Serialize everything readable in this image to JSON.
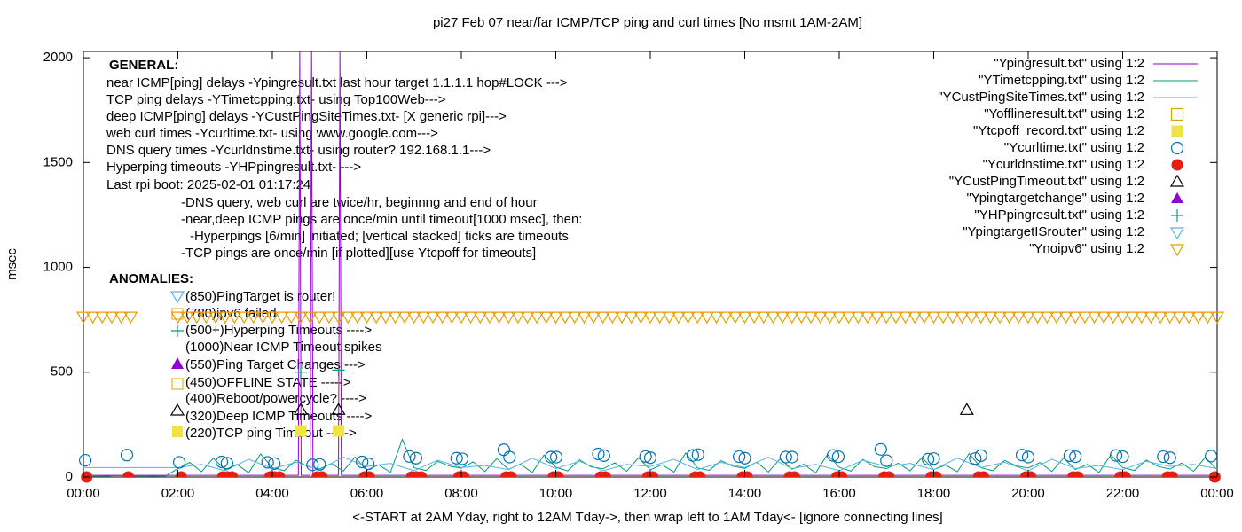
{
  "chart_data": {
    "type": "line",
    "title": "pi27 Feb 07  near/far ICMP/TCP ping and curl times [No msmt 1AM-2AM]",
    "xlabel": "<-START at 2AM Yday, right to 12AM Tday->, then wrap left to 1AM Tday<- [ignore connecting lines]",
    "ylabel": "msec",
    "xlim": [
      0,
      24
    ],
    "xticks": [
      {
        "value": 0,
        "label": "00:00"
      },
      {
        "value": 2,
        "label": "02:00"
      },
      {
        "value": 4,
        "label": "04:00"
      },
      {
        "value": 6,
        "label": "06:00"
      },
      {
        "value": 8,
        "label": "08:00"
      },
      {
        "value": 10,
        "label": "10:00"
      },
      {
        "value": 12,
        "label": "12:00"
      },
      {
        "value": 14,
        "label": "14:00"
      },
      {
        "value": 16,
        "label": "16:00"
      },
      {
        "value": 18,
        "label": "18:00"
      },
      {
        "value": 20,
        "label": "20:00"
      },
      {
        "value": 22,
        "label": "22:00"
      },
      {
        "value": 24,
        "label": "00:00"
      }
    ],
    "ylim": [
      0,
      2030
    ],
    "yticks": [
      0,
      500,
      1000,
      1500,
      2000
    ],
    "legend": "top right",
    "general_heading": "GENERAL:",
    "general": [
      "near ICMP[ping] delays -Ypingresult.txt last hour target 1.1.1.1 hop#LOCK --->",
      "TCP ping delays -YTimetcpping.txt- using Top100Web--->",
      "deep ICMP[ping] delays -YCustPingSiteTimes.txt- [X generic rpi]--->",
      "web curl times -Ycurltime.txt- using www.google.com--->",
      "DNS query times -Ycurldnstime.txt- using router? 192.168.1.1--->",
      "Hyperping timeouts -YHPpingresult.txt- --->",
      "Last rpi boot: 2025-02-01 01:17:24",
      "-DNS query, web curl are twice/hr, beginnng and end of hour",
      "-near,deep ICMP pings are once/min until timeout[1000 msec], then:",
      "-Hyperpings [6/min] initiated; [vertical stacked] ticks are timeouts",
      "-TCP pings are once/min [if plotted][use Ytcpoff for timeouts]"
    ],
    "anomalies_heading": "ANOMALIES:",
    "anomalies": [
      "(850)PingTarget is router!",
      "(780)ipv6 failed",
      "(500+)Hyperping Timeouts ---->",
      "(1000)Near ICMP Timeout spikes",
      "(550)Ping Target Changes --->",
      "(450)OFFLINE STATE ----->",
      "(400)Reboot/powercycle? ---->",
      "(320)Deep ICMP Timeouts ---->",
      "(220)TCP ping Timeout ----->"
    ],
    "series": [
      {
        "name": "\"Ypingresult.txt\" using 1:2",
        "color": "#9400d3",
        "style": "line",
        "x": [
          0,
          4.55,
          4.58,
          4.61,
          4.8,
          4.83,
          4.86,
          5.4,
          5.43,
          5.46,
          24
        ],
        "values": [
          8,
          8,
          2030,
          8,
          8,
          2030,
          8,
          8,
          2030,
          8,
          8
        ]
      },
      {
        "name": "\"YTimetcpping.txt\" using 1:2",
        "color": "#009e73",
        "style": "line",
        "x": [
          0,
          0.25,
          0.5,
          0.75,
          1,
          1.25,
          1.5,
          1.75,
          2,
          2.25,
          2.5,
          2.75,
          3,
          3.25,
          3.5,
          3.75,
          4,
          4.25,
          4.5,
          4.75,
          5,
          5.25,
          5.5,
          5.75,
          6,
          6.25,
          6.5,
          6.75,
          7,
          7.25,
          7.5,
          7.75,
          8,
          8.25,
          8.5,
          8.75,
          9,
          9.25,
          9.5,
          9.75,
          10,
          10.25,
          10.5,
          10.75,
          11,
          11.25,
          11.5,
          11.75,
          12,
          12.25,
          12.5,
          12.75,
          13,
          13.25,
          13.5,
          13.75,
          14,
          14.25,
          14.5,
          14.75,
          15,
          15.25,
          15.5,
          15.75,
          16,
          16.25,
          16.5,
          16.75,
          17,
          17.25,
          17.5,
          17.75,
          18,
          18.25,
          18.5,
          18.75,
          19,
          19.25,
          19.5,
          19.75,
          20,
          20.25,
          20.5,
          20.75,
          21,
          21.25,
          21.5,
          21.75,
          22,
          22.25,
          22.5,
          22.75,
          23,
          23.25,
          23.5,
          23.75,
          24
        ],
        "values": [
          5,
          6,
          5,
          7,
          5,
          6,
          5,
          6,
          40,
          70,
          25,
          90,
          35,
          60,
          20,
          110,
          45,
          30,
          80,
          50,
          38,
          65,
          28,
          95,
          33,
          58,
          22,
          180,
          44,
          31,
          75,
          52,
          42,
          72,
          26,
          88,
          36,
          62,
          21,
          105,
          47,
          29,
          82,
          48,
          39,
          68,
          27,
          92,
          34,
          59,
          23,
          115,
          43,
          32,
          78,
          51,
          41,
          71,
          24,
          87,
          37,
          61,
          19,
          108,
          46,
          28,
          84,
          49,
          40,
          66,
          29,
          93,
          35,
          57,
          25,
          112,
          44,
          30,
          79,
          53,
          43,
          69,
          26,
          91,
          36,
          60,
          22,
          106,
          45,
          31,
          81,
          50,
          38,
          67,
          27,
          94,
          34
        ]
      },
      {
        "name": "\"YCustPingSiteTimes.txt\" using 1:2",
        "color": "#56b4e9",
        "style": "line",
        "x": [
          0,
          0.5,
          1,
          1.5,
          2,
          2.5,
          3,
          3.5,
          4,
          4.5,
          5,
          5.5,
          6,
          6.5,
          7,
          7.5,
          8,
          8.5,
          9,
          9.5,
          10,
          10.5,
          11,
          11.5,
          12,
          12.5,
          13,
          13.5,
          14,
          14.5,
          15,
          15.5,
          16,
          16.5,
          17,
          17.5,
          18,
          18.5,
          19,
          19.5,
          20,
          20.5,
          21,
          21.5,
          22,
          22.5,
          23,
          23.5,
          24
        ],
        "values": [
          45,
          45,
          45,
          45,
          45,
          60,
          30,
          85,
          40,
          70,
          35,
          95,
          50,
          65,
          30,
          80,
          45,
          55,
          35,
          90,
          40,
          75,
          30,
          60,
          50,
          85,
          35,
          70,
          45,
          95,
          40,
          60,
          30,
          80,
          50,
          65,
          35,
          90,
          45,
          70,
          30,
          85,
          40,
          55,
          35,
          75,
          50,
          60,
          40
        ]
      },
      {
        "name": "\"Yofflineresult.txt\" using 1:2",
        "color": "#e69f00",
        "style": "points",
        "marker": "open-square",
        "x": [],
        "values": []
      },
      {
        "name": "\"Ytcpoff_record.txt\" using 1:2",
        "color": "#f0e442",
        "style": "points",
        "marker": "filled-square",
        "x": [
          4.6,
          5.4
        ],
        "values": [
          220,
          220
        ]
      },
      {
        "name": "\"Ycurltime.txt\" using 1:2",
        "color": "#0072b2",
        "style": "points",
        "marker": "open-circle",
        "x": [
          0.04,
          0.92,
          2.03,
          2.93,
          3.04,
          3.9,
          4.04,
          4.85,
          5.0,
          5.9,
          6.03,
          6.9,
          7.04,
          7.9,
          8.02,
          8.9,
          9.02,
          9.9,
          10.01,
          10.9,
          11.02,
          11.9,
          12.0,
          12.9,
          13.01,
          13.88,
          14.0,
          14.87,
          15.0,
          15.87,
          15.98,
          16.88,
          17.0,
          17.88,
          18.0,
          18.88,
          19.0,
          19.87,
          20.0,
          20.88,
          21.0,
          21.86,
          22.0,
          22.86,
          23.0,
          23.87
        ],
        "values": [
          80,
          105,
          70,
          72,
          66,
          70,
          64,
          58,
          60,
          72,
          63,
          98,
          90,
          90,
          87,
          130,
          95,
          95,
          95,
          110,
          102,
          98,
          92,
          103,
          107,
          97,
          90,
          95,
          95,
          103,
          97,
          132,
          78,
          85,
          88,
          88,
          102,
          105,
          95,
          102,
          97,
          103,
          97,
          97,
          92,
          100
        ]
      },
      {
        "name": "\"Ycurldnstime.txt\" using 1:2",
        "color": "#e51e10",
        "style": "points",
        "marker": "filled-circle",
        "x": [
          0.07,
          0.95,
          2.07,
          2.95,
          3.05,
          3.15,
          3.95,
          4.05,
          4.15,
          4.95,
          5.05,
          5.95,
          6.05,
          6.95,
          7.05,
          7.15,
          7.95,
          8.05,
          8.95,
          9.05,
          9.95,
          10.05,
          10.95,
          11.05,
          11.95,
          12.05,
          12.95,
          13.05,
          13.95,
          14.05,
          14.95,
          15.05,
          15.95,
          16.05,
          16.95,
          17.05,
          17.95,
          18.05,
          18.95,
          19.05,
          19.95,
          20.05,
          20.95,
          21.05,
          21.95,
          22.05,
          22.95,
          23.05,
          23.95
        ],
        "values": [
          0,
          0,
          0,
          0,
          0,
          0,
          0,
          0,
          0,
          0,
          0,
          0,
          0,
          0,
          0,
          0,
          0,
          0,
          0,
          0,
          0,
          0,
          0,
          0,
          0,
          0,
          0,
          0,
          0,
          0,
          0,
          0,
          0,
          0,
          0,
          0,
          0,
          0,
          0,
          0,
          0,
          0,
          0,
          0,
          0,
          0,
          0,
          0,
          0
        ]
      },
      {
        "name": "\"YCustPingTimeout.txt\" using 1:2",
        "color": "#000000",
        "style": "points",
        "marker": "open-triangle",
        "x": [
          4.6,
          5.4,
          18.7
        ],
        "values": [
          320,
          320,
          320
        ]
      },
      {
        "name": "\"Ypingtargetchange\" using 1:2",
        "color": "#9400d3",
        "style": "points",
        "marker": "filled-triangle",
        "x": [],
        "values": []
      },
      {
        "name": "\"YHPpingresult.txt\" using 1:2",
        "color": "#009e73",
        "style": "points",
        "marker": "plus",
        "x": [
          4.6,
          5.4
        ],
        "values": [
          500,
          510
        ]
      },
      {
        "name": "\"YpingtargetISrouter\" using 1:2",
        "color": "#56b4e9",
        "style": "points",
        "marker": "open-down-triangle",
        "x": [],
        "values": []
      },
      {
        "name": "\"Ynoipv6\" using 1:2",
        "color": "#e69f00",
        "style": "points",
        "marker": "open-down-triangle",
        "x": [
          0,
          0.2,
          0.4,
          0.6,
          0.8,
          1,
          2,
          2.2,
          2.4,
          2.6,
          2.8,
          3,
          3.2,
          3.4,
          3.6,
          3.8,
          4,
          4.2,
          4.4,
          4.6,
          4.8,
          5,
          5.2,
          5.4,
          5.6,
          5.8,
          6,
          6.2,
          6.4,
          6.6,
          6.8,
          7,
          7.2,
          7.4,
          7.6,
          7.8,
          8,
          8.2,
          8.4,
          8.6,
          8.8,
          9,
          9.2,
          9.4,
          9.6,
          9.8,
          10,
          10.2,
          10.4,
          10.6,
          10.8,
          11,
          11.2,
          11.4,
          11.6,
          11.8,
          12,
          12.2,
          12.4,
          12.6,
          12.8,
          13,
          13.2,
          13.4,
          13.6,
          13.8,
          14,
          14.2,
          14.4,
          14.6,
          14.8,
          15,
          15.2,
          15.4,
          15.6,
          15.8,
          16,
          16.2,
          16.4,
          16.6,
          16.8,
          17,
          17.2,
          17.4,
          17.6,
          17.8,
          18,
          18.2,
          18.4,
          18.6,
          18.8,
          19,
          19.2,
          19.4,
          19.6,
          19.8,
          20,
          20.2,
          20.4,
          20.6,
          20.8,
          21,
          21.2,
          21.4,
          21.6,
          21.8,
          22,
          22.2,
          22.4,
          22.6,
          22.8,
          23,
          23.2,
          23.4,
          23.6,
          23.8,
          24
        ],
        "values": [
          765,
          765,
          765,
          765,
          765,
          765,
          765,
          765,
          765,
          765,
          765,
          765,
          765,
          765,
          765,
          765,
          765,
          765,
          765,
          765,
          765,
          765,
          765,
          765,
          765,
          765,
          765,
          765,
          765,
          765,
          765,
          765,
          765,
          765,
          765,
          765,
          765,
          765,
          765,
          765,
          765,
          765,
          765,
          765,
          765,
          765,
          765,
          765,
          765,
          765,
          765,
          765,
          765,
          765,
          765,
          765,
          765,
          765,
          765,
          765,
          765,
          765,
          765,
          765,
          765,
          765,
          765,
          765,
          765,
          765,
          765,
          765,
          765,
          765,
          765,
          765,
          765,
          765,
          765,
          765,
          765,
          765,
          765,
          765,
          765,
          765,
          765,
          765,
          765,
          765,
          765,
          765,
          765,
          765,
          765,
          765,
          765,
          765,
          765,
          765,
          765,
          765,
          765,
          765,
          765,
          765,
          765,
          765,
          765,
          765,
          765,
          765,
          765,
          765,
          765,
          765,
          765
        ]
      }
    ]
  }
}
